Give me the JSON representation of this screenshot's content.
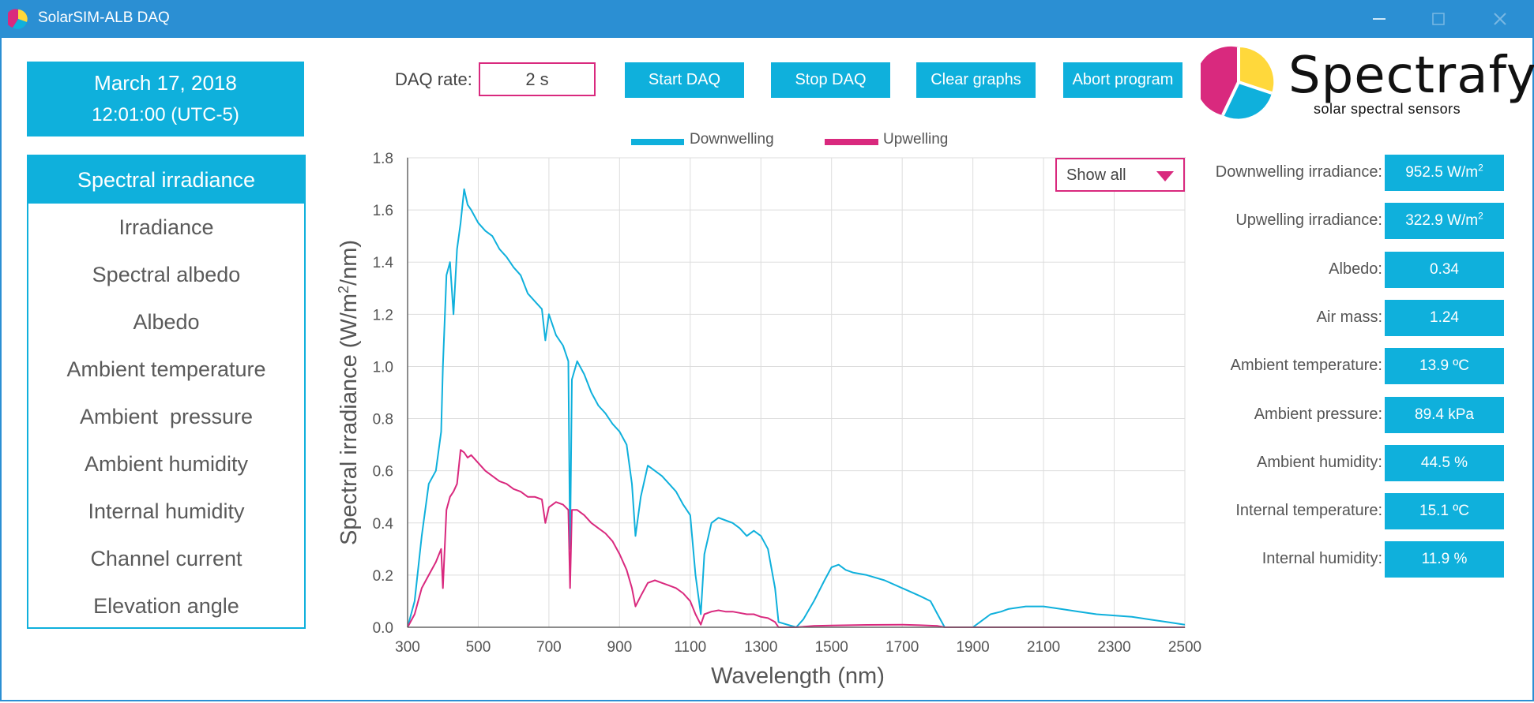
{
  "window": {
    "title": "SolarSIM-ALB DAQ",
    "controls": [
      "minimize",
      "maximize",
      "close"
    ]
  },
  "datetime": {
    "date": "March 17, 2018",
    "time": "12:01:00 (UTC-5)"
  },
  "nav": {
    "items": [
      {
        "label": "Spectral irradiance",
        "active": true
      },
      {
        "label": "Irradiance"
      },
      {
        "label": "Spectral albedo"
      },
      {
        "label": "Albedo"
      },
      {
        "label": "Ambient temperature"
      },
      {
        "label": "Ambient  pressure"
      },
      {
        "label": "Ambient humidity"
      },
      {
        "label": "Internal humidity"
      },
      {
        "label": "Channel current"
      },
      {
        "label": "Elevation angle"
      }
    ]
  },
  "toolbar": {
    "daq_rate_label": "DAQ rate:",
    "daq_rate_value": "2 s",
    "start_label": "Start DAQ",
    "stop_label": "Stop DAQ",
    "clear_label": "Clear graphs",
    "abort_label": "Abort program"
  },
  "logo": {
    "name": "Spectrafy",
    "tagline": "solar spectral sensors"
  },
  "filter": {
    "selected": "Show all"
  },
  "stats": [
    {
      "label": "Downwelling irradiance:",
      "value": "952.5 W/m",
      "sup": "2"
    },
    {
      "label": "Upwelling irradiance:",
      "value": "322.9 W/m",
      "sup": "2"
    },
    {
      "label": "Albedo:",
      "value": "0.34"
    },
    {
      "label": "Air mass:",
      "value": "1.24"
    },
    {
      "label": "Ambient temperature:",
      "value": "13.9 ºC"
    },
    {
      "label": "Ambient pressure:",
      "value": "89.4 kPa"
    },
    {
      "label": "Ambient humidity:",
      "value": "44.5 %"
    },
    {
      "label": "Internal temperature:",
      "value": "15.1 ºC"
    },
    {
      "label": "Internal humidity:",
      "value": "11.9 %"
    }
  ],
  "colors": {
    "accent": "#0fb0dc",
    "titlebar": "#2b8fd3",
    "magenta": "#d9297e",
    "logo_yellow": "#ffd83b"
  },
  "chart_data": {
    "type": "line",
    "xlabel": "Wavelength (nm)",
    "ylabel_main": "Spectral irradiance (W/m",
    "ylabel_sup": "2",
    "ylabel_end": "/nm)",
    "xlim": [
      300,
      2500
    ],
    "ylim": [
      0,
      1.8
    ],
    "x_ticks": [
      300,
      500,
      700,
      900,
      1100,
      1300,
      1500,
      1700,
      1900,
      2100,
      2300,
      2500
    ],
    "y_ticks": [
      "0.0",
      "0.2",
      "0.4",
      "0.6",
      "0.8",
      "1.0",
      "1.2",
      "1.4",
      "1.6",
      "1.8"
    ],
    "grid": true,
    "legend_position": "top",
    "series": [
      {
        "name": "Downwelling",
        "color": "#0fb0dc",
        "points": [
          [
            300,
            0.0
          ],
          [
            320,
            0.1
          ],
          [
            340,
            0.35
          ],
          [
            360,
            0.55
          ],
          [
            380,
            0.6
          ],
          [
            395,
            0.75
          ],
          [
            400,
            1.0
          ],
          [
            410,
            1.35
          ],
          [
            420,
            1.4
          ],
          [
            430,
            1.2
          ],
          [
            440,
            1.45
          ],
          [
            450,
            1.55
          ],
          [
            460,
            1.68
          ],
          [
            470,
            1.62
          ],
          [
            480,
            1.6
          ],
          [
            500,
            1.55
          ],
          [
            520,
            1.52
          ],
          [
            540,
            1.5
          ],
          [
            560,
            1.45
          ],
          [
            580,
            1.42
          ],
          [
            600,
            1.38
          ],
          [
            620,
            1.35
          ],
          [
            640,
            1.28
          ],
          [
            660,
            1.25
          ],
          [
            680,
            1.22
          ],
          [
            690,
            1.1
          ],
          [
            700,
            1.2
          ],
          [
            720,
            1.12
          ],
          [
            740,
            1.08
          ],
          [
            755,
            1.02
          ],
          [
            760,
            0.3
          ],
          [
            765,
            0.95
          ],
          [
            780,
            1.02
          ],
          [
            800,
            0.97
          ],
          [
            820,
            0.9
          ],
          [
            840,
            0.85
          ],
          [
            860,
            0.82
          ],
          [
            880,
            0.78
          ],
          [
            900,
            0.75
          ],
          [
            920,
            0.7
          ],
          [
            935,
            0.55
          ],
          [
            945,
            0.35
          ],
          [
            960,
            0.5
          ],
          [
            980,
            0.62
          ],
          [
            1000,
            0.6
          ],
          [
            1020,
            0.58
          ],
          [
            1040,
            0.55
          ],
          [
            1060,
            0.52
          ],
          [
            1080,
            0.47
          ],
          [
            1100,
            0.43
          ],
          [
            1115,
            0.2
          ],
          [
            1130,
            0.05
          ],
          [
            1140,
            0.28
          ],
          [
            1160,
            0.4
          ],
          [
            1180,
            0.42
          ],
          [
            1200,
            0.41
          ],
          [
            1220,
            0.4
          ],
          [
            1240,
            0.38
          ],
          [
            1260,
            0.35
          ],
          [
            1280,
            0.37
          ],
          [
            1300,
            0.35
          ],
          [
            1320,
            0.3
          ],
          [
            1340,
            0.15
          ],
          [
            1350,
            0.02
          ],
          [
            1400,
            0.0
          ],
          [
            1420,
            0.03
          ],
          [
            1450,
            0.1
          ],
          [
            1480,
            0.18
          ],
          [
            1500,
            0.23
          ],
          [
            1520,
            0.24
          ],
          [
            1540,
            0.22
          ],
          [
            1560,
            0.21
          ],
          [
            1600,
            0.2
          ],
          [
            1650,
            0.18
          ],
          [
            1700,
            0.15
          ],
          [
            1750,
            0.12
          ],
          [
            1780,
            0.1
          ],
          [
            1800,
            0.05
          ],
          [
            1820,
            0.0
          ],
          [
            1900,
            0.0
          ],
          [
            1920,
            0.02
          ],
          [
            1950,
            0.05
          ],
          [
            1980,
            0.06
          ],
          [
            2000,
            0.07
          ],
          [
            2050,
            0.08
          ],
          [
            2100,
            0.08
          ],
          [
            2150,
            0.07
          ],
          [
            2200,
            0.06
          ],
          [
            2250,
            0.05
          ],
          [
            2300,
            0.045
          ],
          [
            2350,
            0.04
          ],
          [
            2400,
            0.03
          ],
          [
            2450,
            0.02
          ],
          [
            2500,
            0.01
          ]
        ]
      },
      {
        "name": "Upwelling",
        "color": "#d9297e",
        "points": [
          [
            300,
            0.0
          ],
          [
            320,
            0.05
          ],
          [
            340,
            0.15
          ],
          [
            360,
            0.2
          ],
          [
            380,
            0.25
          ],
          [
            395,
            0.3
          ],
          [
            400,
            0.15
          ],
          [
            410,
            0.45
          ],
          [
            420,
            0.5
          ],
          [
            430,
            0.52
          ],
          [
            440,
            0.55
          ],
          [
            450,
            0.68
          ],
          [
            460,
            0.67
          ],
          [
            470,
            0.65
          ],
          [
            480,
            0.66
          ],
          [
            500,
            0.63
          ],
          [
            520,
            0.6
          ],
          [
            540,
            0.58
          ],
          [
            560,
            0.56
          ],
          [
            580,
            0.55
          ],
          [
            600,
            0.53
          ],
          [
            620,
            0.52
          ],
          [
            640,
            0.5
          ],
          [
            660,
            0.5
          ],
          [
            680,
            0.49
          ],
          [
            690,
            0.4
          ],
          [
            700,
            0.46
          ],
          [
            720,
            0.48
          ],
          [
            740,
            0.47
          ],
          [
            755,
            0.45
          ],
          [
            760,
            0.15
          ],
          [
            765,
            0.45
          ],
          [
            780,
            0.45
          ],
          [
            800,
            0.43
          ],
          [
            820,
            0.4
          ],
          [
            840,
            0.38
          ],
          [
            860,
            0.36
          ],
          [
            880,
            0.33
          ],
          [
            900,
            0.28
          ],
          [
            920,
            0.22
          ],
          [
            935,
            0.15
          ],
          [
            945,
            0.08
          ],
          [
            960,
            0.12
          ],
          [
            980,
            0.17
          ],
          [
            1000,
            0.18
          ],
          [
            1020,
            0.17
          ],
          [
            1040,
            0.16
          ],
          [
            1060,
            0.15
          ],
          [
            1080,
            0.13
          ],
          [
            1100,
            0.1
          ],
          [
            1115,
            0.05
          ],
          [
            1130,
            0.01
          ],
          [
            1140,
            0.05
          ],
          [
            1160,
            0.06
          ],
          [
            1180,
            0.065
          ],
          [
            1200,
            0.06
          ],
          [
            1220,
            0.06
          ],
          [
            1240,
            0.055
          ],
          [
            1260,
            0.05
          ],
          [
            1280,
            0.05
          ],
          [
            1300,
            0.04
          ],
          [
            1320,
            0.035
          ],
          [
            1340,
            0.02
          ],
          [
            1350,
            0.0
          ],
          [
            1400,
            0.0
          ],
          [
            1450,
            0.005
          ],
          [
            1500,
            0.007
          ],
          [
            1550,
            0.008
          ],
          [
            1600,
            0.009
          ],
          [
            1700,
            0.01
          ],
          [
            1750,
            0.008
          ],
          [
            1800,
            0.005
          ],
          [
            1820,
            0.0
          ],
          [
            2500,
            0.0
          ]
        ]
      }
    ]
  }
}
